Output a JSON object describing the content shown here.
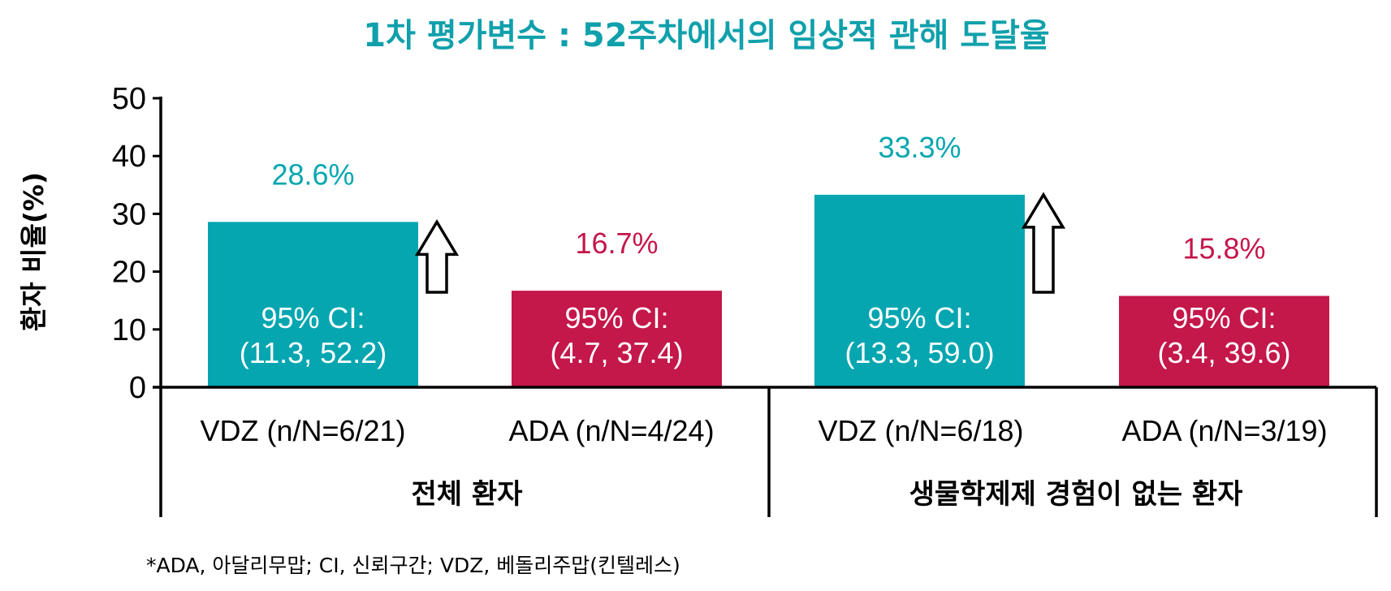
{
  "colors": {
    "title": "#10a0ab",
    "vdz": "#05a6b0",
    "ada": "#c4174a",
    "axis": "#000000"
  },
  "chart_data": {
    "type": "bar",
    "title": "1차 평가변수 : 52주차에서의 임상적 관해 도달율",
    "ylabel": "환자 비율(%)",
    "ylim": [
      0,
      50
    ],
    "yticks": [
      "0",
      "10",
      "20",
      "30",
      "40",
      "50"
    ],
    "bars": [
      {
        "category": "VDZ (n/N=6/21)",
        "group": "전체 환자",
        "drug": "vdz",
        "value": 28.6,
        "value_label": "28.6%",
        "ci_line1": "95% CI:",
        "ci_line2": "(11.3, 52.2)",
        "arrow": true
      },
      {
        "category": "ADA (n/N=4/24)",
        "group": "전체 환자",
        "drug": "ada",
        "value": 16.7,
        "value_label": "16.7%",
        "ci_line1": "95% CI:",
        "ci_line2": "(4.7, 37.4)",
        "arrow": false
      },
      {
        "category": "VDZ (n/N=6/18)",
        "group": "생물학제제 경험이 없는 환자",
        "drug": "vdz",
        "value": 33.3,
        "value_label": "33.3%",
        "ci_line1": "95% CI:",
        "ci_line2": "(13.3, 59.0)",
        "arrow": true
      },
      {
        "category": "ADA (n/N=3/19)",
        "group": "생물학제제 경험이 없는 환자",
        "drug": "ada",
        "value": 15.8,
        "value_label": "15.8%",
        "ci_line1": "95% CI:",
        "ci_line2": "(3.4, 39.6)",
        "arrow": false
      }
    ],
    "groups": [
      "전체 환자",
      "생물학제제 경험이 없는 환자"
    ],
    "footnote": "*ADA, 아달리무맙; CI, 신뢰구간; VDZ, 베돌리주맙(킨텔레스)"
  }
}
